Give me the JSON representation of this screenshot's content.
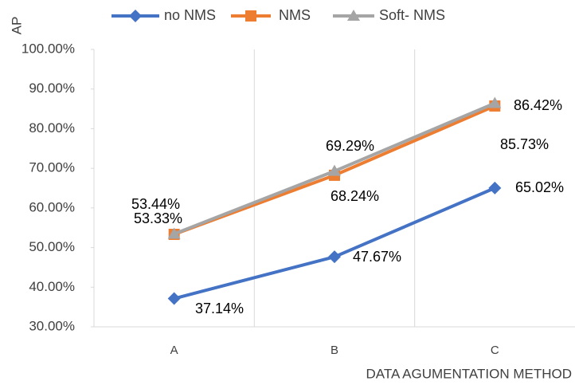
{
  "chart_data": {
    "type": "line",
    "x_label": "DATA AGUMENTATION METHOD",
    "y_label": "AP",
    "categories": [
      "A",
      "B",
      "C"
    ],
    "series": [
      {
        "name": "no NMS",
        "color": "#4472c4",
        "values": [
          37.14,
          47.67,
          65.02
        ],
        "value_labels": [
          "37.14%",
          "47.67%",
          "65.02%"
        ]
      },
      {
        "name": "NMS",
        "color": "#ed7d31",
        "values": [
          53.33,
          68.24,
          85.73
        ],
        "value_labels": [
          "53.33%",
          "68.24%",
          "85.73%"
        ]
      },
      {
        "name": "Soft- NMS",
        "color": "#a5a5a5",
        "values": [
          53.44,
          69.29,
          86.42
        ],
        "value_labels": [
          "53.44%",
          "69.29%",
          "86.42%"
        ]
      }
    ],
    "ylim": [
      30,
      100
    ],
    "yticks": [
      {
        "value": 30,
        "label": "30.00%"
      },
      {
        "value": 40,
        "label": "40.00%"
      },
      {
        "value": 50,
        "label": "50.00%"
      },
      {
        "value": 60,
        "label": "60.00%"
      },
      {
        "value": 70,
        "label": "70.00%"
      },
      {
        "value": 80,
        "label": "80.00%"
      },
      {
        "value": 90,
        "label": "90.00%"
      },
      {
        "value": 100,
        "label": "100.00%"
      }
    ],
    "legend": "top"
  }
}
